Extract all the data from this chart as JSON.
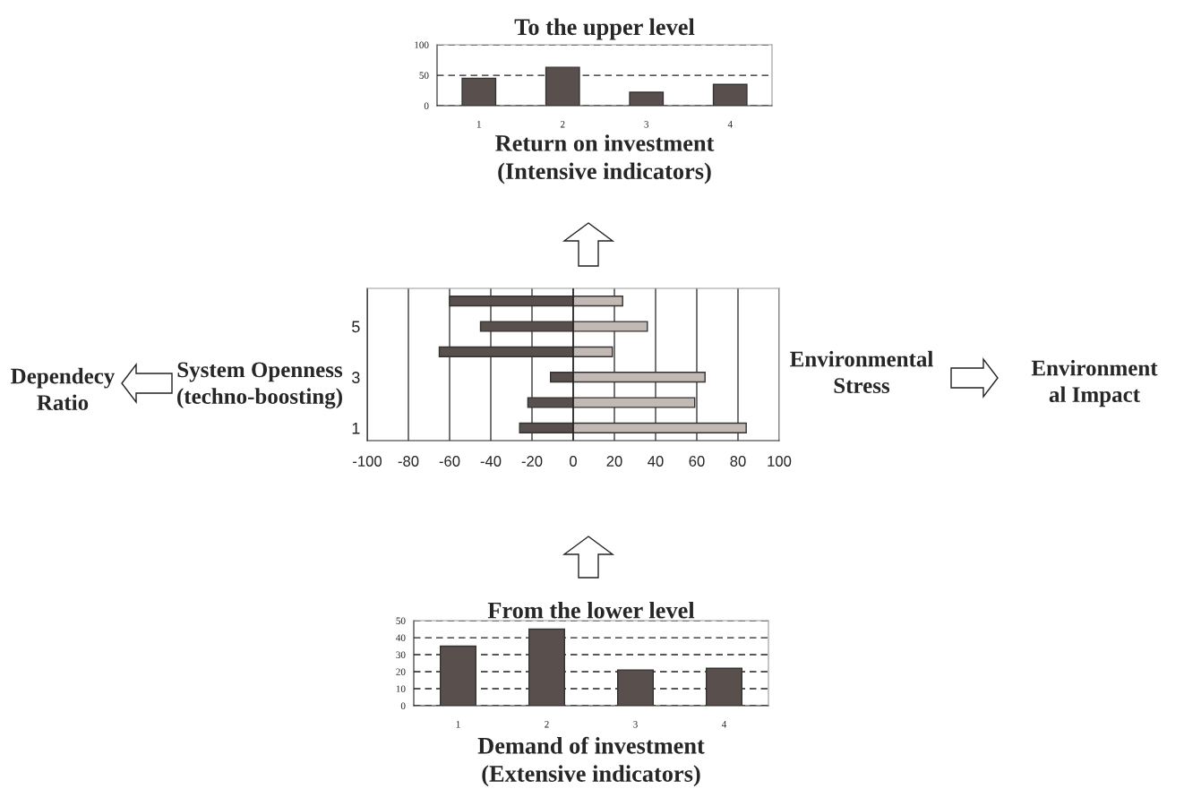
{
  "chart_data": [
    {
      "type": "bar",
      "title": "To the upper level",
      "xlabel": "Return on investment\n(Intensive indicators)",
      "categories": [
        "1",
        "2",
        "3",
        "4"
      ],
      "series": [
        {
          "color": "#594f4c",
          "values": [
            45,
            63,
            22,
            35
          ]
        }
      ],
      "ylim": [
        0,
        100
      ],
      "yticks": [
        0,
        50,
        100
      ],
      "grid": "y"
    },
    {
      "type": "bar",
      "orientation": "horizontal",
      "stacked": true,
      "categories": [
        null,
        "5",
        null,
        "3",
        null,
        "1"
      ],
      "series": [
        {
          "color": "#594f4c",
          "values": [
            -60,
            -45,
            -65,
            -11,
            -22,
            -26
          ]
        },
        {
          "color": "#c2b8b4",
          "values": [
            24,
            36,
            19,
            64,
            59,
            84
          ]
        }
      ],
      "xlim": [
        -100,
        100
      ],
      "xticks": [
        -100,
        -80,
        -60,
        -40,
        -20,
        0,
        20,
        40,
        60,
        80,
        100
      ],
      "grid": "x",
      "annotations": [
        "Dependecy\nRatio",
        "System Openness\n(techno-boosting)",
        "Environmental\nStress",
        "Environment\nal Impact"
      ]
    },
    {
      "type": "bar",
      "title": "From the lower level",
      "xlabel": "Demand of investment\n(Extensive indicators)",
      "categories": [
        "1",
        "2",
        "3",
        "4"
      ],
      "series": [
        {
          "color": "#594f4c",
          "values": [
            35,
            45,
            21,
            22
          ]
        }
      ],
      "ylim": [
        0,
        50
      ],
      "yticks": [
        0,
        10,
        20,
        30,
        40,
        50
      ],
      "grid": "y"
    }
  ]
}
